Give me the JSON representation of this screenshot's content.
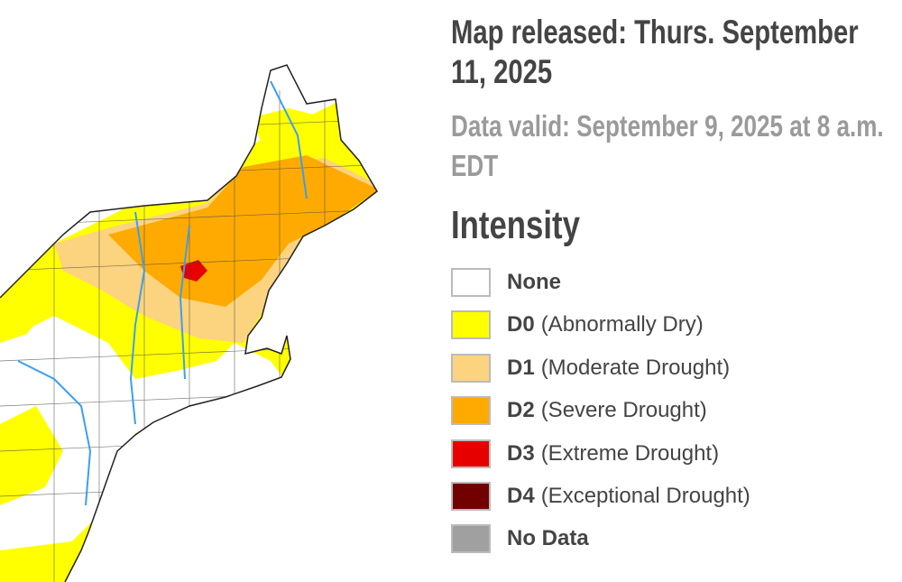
{
  "header": {
    "released": "Map released: Thurs. September 11, 2025",
    "valid": "Data valid: September 9, 2025 at 8 a.m. EDT"
  },
  "legend": {
    "title": "Intensity",
    "items": [
      {
        "code": "None",
        "color": "#ffffff"
      },
      {
        "code": "D0",
        "description": "(Abnormally Dry)",
        "color": "#ffff00"
      },
      {
        "code": "D1",
        "description": "(Moderate Drought)",
        "color": "#fcd37f"
      },
      {
        "code": "D2",
        "description": "(Severe Drought)",
        "color": "#ffaa00"
      },
      {
        "code": "D3",
        "description": "(Extreme Drought)",
        "color": "#e60000"
      },
      {
        "code": "D4",
        "description": "(Exceptional Drought)",
        "color": "#730000"
      },
      {
        "code": "No Data",
        "color": "#a0a0a0"
      }
    ]
  }
}
